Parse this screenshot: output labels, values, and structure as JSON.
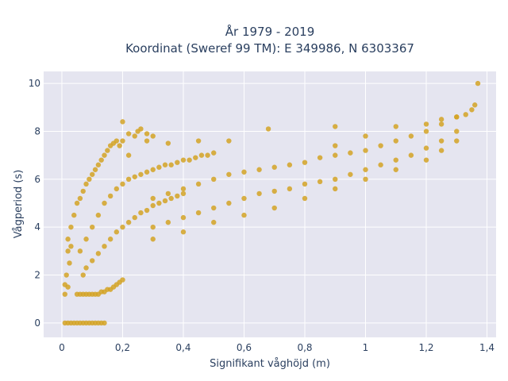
{
  "chart_data": {
    "type": "scatter",
    "title_lines": [
      "År 1979 - 2019",
      "Koordinat (Sweref 99 TM): E 349986, N 6303367"
    ],
    "xlabel": "Signifikant våghöjd (m)",
    "ylabel": "Vågperiod (s)",
    "xlim": [
      -0.06,
      1.43
    ],
    "ylim": [
      -0.6,
      10.5
    ],
    "xticks": [
      0,
      0.2,
      0.4,
      0.6,
      0.8,
      1,
      1.2,
      1.4
    ],
    "xtick_labels": [
      "0",
      "0,2",
      "0,4",
      "0,6",
      "0,8",
      "1",
      "1,2",
      "1,4"
    ],
    "yticks": [
      0,
      2,
      4,
      6,
      8,
      10
    ],
    "ytick_labels": [
      "0",
      "2",
      "4",
      "6",
      "8",
      "10"
    ],
    "grid": true,
    "marker_color": "#d4a325",
    "plot_background": "#e5e5f0",
    "series": [
      {
        "x": [
          0.01,
          0.02,
          0.03,
          0.04,
          0.05,
          0.06,
          0.07,
          0.08,
          0.09,
          0.1,
          0.11,
          0.12,
          0.13,
          0.14,
          0.01,
          0.02,
          0.015,
          0.025,
          0.02,
          0.03,
          0.01,
          0.02,
          0.03,
          0.04,
          0.05,
          0.06,
          0.07,
          0.08,
          0.09,
          0.1,
          0.11,
          0.12,
          0.13,
          0.14,
          0.15,
          0.16,
          0.17,
          0.18,
          0.19,
          0.2,
          0.22,
          0.24,
          0.26,
          0.28,
          0.3,
          0.05,
          0.06,
          0.07,
          0.08,
          0.09,
          0.1,
          0.11,
          0.12,
          0.13,
          0.14,
          0.15,
          0.16,
          0.17,
          0.18,
          0.19,
          0.2,
          0.07,
          0.08,
          0.1,
          0.12,
          0.14,
          0.16,
          0.18,
          0.2,
          0.22,
          0.24,
          0.26,
          0.28,
          0.3,
          0.32,
          0.34,
          0.36,
          0.38,
          0.4,
          0.06,
          0.08,
          0.1,
          0.12,
          0.14,
          0.16,
          0.18,
          0.2,
          0.22,
          0.24,
          0.26,
          0.28,
          0.3,
          0.32,
          0.34,
          0.36,
          0.38,
          0.4,
          0.42,
          0.44,
          0.46,
          0.48,
          0.5,
          0.3,
          0.35,
          0.4,
          0.45,
          0.5,
          0.55,
          0.6,
          0.65,
          0.7,
          0.75,
          0.8,
          0.85,
          0.9,
          0.95,
          1.0,
          1.05,
          1.1,
          1.15,
          1.2,
          1.25,
          1.3,
          0.3,
          0.35,
          0.4,
          0.45,
          0.5,
          0.55,
          0.6,
          0.65,
          0.7,
          0.75,
          0.8,
          0.85,
          0.9,
          0.95,
          1.0,
          1.05,
          1.1,
          1.15,
          1.2,
          1.25,
          1.3,
          0.2,
          0.22,
          0.25,
          0.28,
          0.35,
          0.45,
          0.55,
          0.68,
          0.9,
          0.9,
          1.0,
          1.1,
          1.2,
          1.25,
          1.3,
          1.33,
          1.35,
          1.36,
          1.37,
          0.3,
          0.4,
          0.5,
          0.6,
          0.7,
          0.8,
          0.9,
          1.0,
          1.1,
          1.2,
          1.25,
          1.3
        ],
        "y": [
          0,
          0,
          0,
          0,
          0,
          0,
          0,
          0,
          0,
          0,
          0,
          0,
          0,
          0,
          1.2,
          1.5,
          2.0,
          2.5,
          3.0,
          3.2,
          1.6,
          3.5,
          4.0,
          4.5,
          5.0,
          5.2,
          5.5,
          5.8,
          6.0,
          6.2,
          6.4,
          6.6,
          6.8,
          7.0,
          7.2,
          7.4,
          7.5,
          7.6,
          7.4,
          7.6,
          7.9,
          7.8,
          8.1,
          7.9,
          7.8,
          1.2,
          1.2,
          1.2,
          1.2,
          1.2,
          1.2,
          1.2,
          1.2,
          1.3,
          1.3,
          1.4,
          1.4,
          1.5,
          1.6,
          1.7,
          1.8,
          2.0,
          2.3,
          2.6,
          2.9,
          3.2,
          3.5,
          3.8,
          4.0,
          4.2,
          4.4,
          4.6,
          4.7,
          4.9,
          5.0,
          5.1,
          5.2,
          5.3,
          5.4,
          3.0,
          3.5,
          4.0,
          4.5,
          5.0,
          5.3,
          5.6,
          5.8,
          6.0,
          6.1,
          6.2,
          6.3,
          6.4,
          6.5,
          6.6,
          6.6,
          6.7,
          6.8,
          6.8,
          6.9,
          7.0,
          7.0,
          7.1,
          4.0,
          4.2,
          4.4,
          4.6,
          4.8,
          5.0,
          5.2,
          5.4,
          5.5,
          5.6,
          5.8,
          5.9,
          6.0,
          6.2,
          6.4,
          6.6,
          6.8,
          7.0,
          7.3,
          7.6,
          8.0,
          5.2,
          5.4,
          5.6,
          5.8,
          6.0,
          6.2,
          6.3,
          6.4,
          6.5,
          6.6,
          6.7,
          6.9,
          7.0,
          7.1,
          7.2,
          7.4,
          7.6,
          7.8,
          8.0,
          8.3,
          8.6,
          8.4,
          7.0,
          8.0,
          7.6,
          7.5,
          7.6,
          7.6,
          8.1,
          8.2,
          7.4,
          7.8,
          8.2,
          8.3,
          8.5,
          8.6,
          8.7,
          8.9,
          9.1,
          10.0,
          3.5,
          3.8,
          4.2,
          4.5,
          4.8,
          5.2,
          5.6,
          6.0,
          6.4,
          6.8,
          7.2,
          7.6
        ]
      }
    ]
  }
}
